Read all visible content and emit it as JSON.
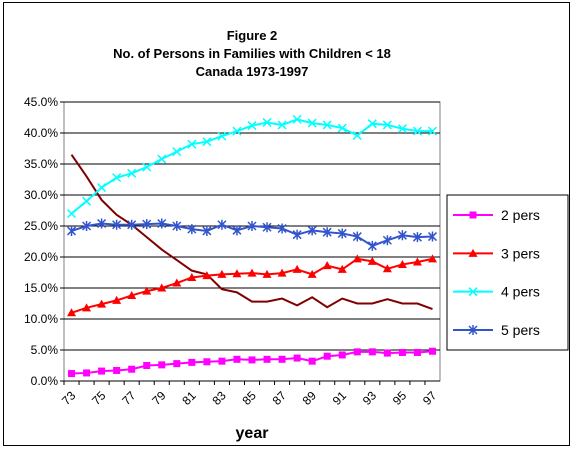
{
  "chart_data": {
    "type": "line",
    "title": "Figure 2",
    "subtitle": "No. of Persons in Families with Children < 18",
    "subtitle2": "Canada 1973-1997",
    "x_label": "year",
    "categories": [
      "73",
      null,
      "75",
      null,
      "77",
      null,
      "79",
      null,
      "81",
      null,
      "83",
      null,
      "85",
      null,
      "87",
      null,
      "89",
      null,
      "91",
      null,
      "93",
      null,
      "95",
      null,
      "97"
    ],
    "series": [
      {
        "color": "#800000",
        "values": [
          36.5,
          33.0,
          29.2,
          26.8,
          25.2,
          23.2,
          21.2,
          19.5,
          17.8,
          17.2,
          14.8,
          14.3,
          12.8,
          12.8,
          13.3,
          12.2,
          13.5,
          11.9,
          13.3,
          12.5,
          12.5,
          13.2,
          12.5,
          12.5,
          11.6
        ]
      },
      {
        "name": "2 pers",
        "color": "#ff00ff",
        "marker": "square",
        "values": [
          1.2,
          1.3,
          1.6,
          1.7,
          1.9,
          2.5,
          2.6,
          2.8,
          3.0,
          3.1,
          3.2,
          3.5,
          3.4,
          3.5,
          3.5,
          3.7,
          3.2,
          4.0,
          4.2,
          4.7,
          4.7,
          4.5,
          4.6,
          4.6,
          4.8
        ]
      },
      {
        "name": "3 pers",
        "color": "#ff0000",
        "marker": "triangle",
        "values": [
          11.0,
          11.8,
          12.4,
          13.0,
          13.8,
          14.5,
          15.0,
          15.8,
          16.7,
          17.0,
          17.2,
          17.3,
          17.4,
          17.2,
          17.4,
          18.0,
          17.2,
          18.6,
          18.0,
          19.7,
          19.3,
          18.1,
          18.8,
          19.2,
          19.7
        ]
      },
      {
        "name": "4 pers",
        "color": "#00ffff",
        "marker": "x",
        "values": [
          27.0,
          29.0,
          31.2,
          32.8,
          33.5,
          34.5,
          35.8,
          37.0,
          38.2,
          38.6,
          39.5,
          40.3,
          41.2,
          41.7,
          41.3,
          42.2,
          41.6,
          41.3,
          40.8,
          39.6,
          41.5,
          41.3,
          40.7,
          40.3,
          40.3
        ]
      },
      {
        "name": "5 pers",
        "color": "#3355cc",
        "marker": "star",
        "values": [
          24.2,
          25.0,
          25.4,
          25.2,
          25.2,
          25.3,
          25.4,
          25.0,
          24.5,
          24.2,
          25.2,
          24.3,
          25.0,
          24.8,
          24.6,
          23.6,
          24.3,
          24.0,
          23.8,
          23.3,
          21.8,
          22.7,
          23.5,
          23.2,
          23.3
        ]
      }
    ],
    "ylim": [
      0,
      45
    ],
    "yticks": [
      {
        "value": 0,
        "label": "0.0%"
      },
      {
        "value": 5,
        "label": "5.0%"
      },
      {
        "value": 10,
        "label": "10.0%"
      },
      {
        "value": 15,
        "label": "15.0%"
      },
      {
        "value": 20,
        "label": "20.0%"
      },
      {
        "value": 25,
        "label": "25.0%"
      },
      {
        "value": 30,
        "label": "30.0%"
      },
      {
        "value": 35,
        "label": "35.0%"
      },
      {
        "value": 40,
        "label": "40.0%"
      },
      {
        "value": 45,
        "label": "45.0%"
      }
    ],
    "grid": true,
    "legend": "right"
  }
}
